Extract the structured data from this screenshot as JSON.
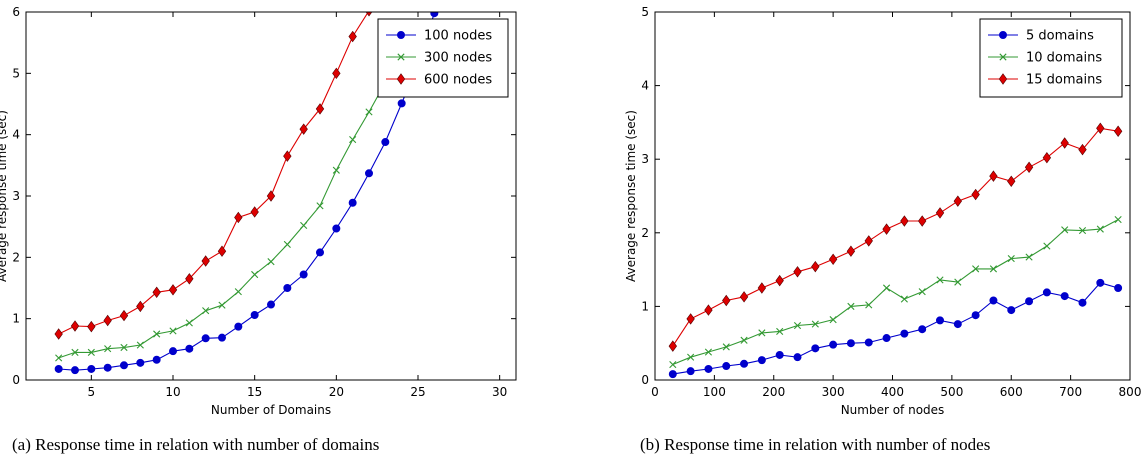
{
  "chart_data": [
    {
      "type": "line",
      "caption": "(a) Response time in relation with number of domains",
      "xlabel": "Number of Domains",
      "ylabel": "Average response time (sec)",
      "xlim": [
        1,
        31
      ],
      "ylim": [
        0,
        6
      ],
      "xticks": [
        5,
        10,
        15,
        20,
        25,
        30
      ],
      "yticks": [
        0,
        1,
        2,
        3,
        4,
        5,
        6
      ],
      "legend_position": "top-right",
      "series": [
        {
          "name": "100 nodes",
          "color": "#0000cc",
          "marker": "circle",
          "x": [
            3,
            4,
            5,
            6,
            7,
            8,
            9,
            10,
            11,
            12,
            13,
            14,
            15,
            16,
            17,
            18,
            19,
            20,
            21,
            22,
            23,
            24,
            25,
            26
          ],
          "y": [
            0.18,
            0.16,
            0.18,
            0.2,
            0.24,
            0.28,
            0.33,
            0.47,
            0.51,
            0.68,
            0.69,
            0.87,
            1.06,
            1.23,
            1.5,
            1.72,
            2.08,
            2.47,
            2.89,
            3.37,
            3.88,
            4.51,
            5.16,
            5.98
          ]
        },
        {
          "name": "300 nodes",
          "color": "#339933",
          "marker": "x",
          "x": [
            3,
            4,
            5,
            6,
            7,
            8,
            9,
            10,
            11,
            12,
            13,
            14,
            15,
            16,
            17,
            18,
            19,
            20,
            21,
            22,
            23
          ],
          "y": [
            0.36,
            0.45,
            0.45,
            0.51,
            0.53,
            0.57,
            0.75,
            0.8,
            0.93,
            1.13,
            1.22,
            1.44,
            1.72,
            1.93,
            2.21,
            2.52,
            2.84,
            3.42,
            3.92,
            4.37,
            4.85
          ]
        },
        {
          "name": "600 nodes",
          "color": "#dd0000",
          "marker": "diamond",
          "x": [
            3,
            4,
            5,
            6,
            7,
            8,
            9,
            10,
            11,
            12,
            13,
            14,
            15,
            16,
            17,
            18,
            19,
            20,
            21,
            22
          ],
          "y": [
            0.75,
            0.88,
            0.87,
            0.97,
            1.05,
            1.2,
            1.43,
            1.47,
            1.65,
            1.94,
            2.1,
            2.65,
            2.74,
            3.0,
            3.65,
            4.09,
            4.42,
            5.0,
            5.6,
            6.02
          ]
        }
      ]
    },
    {
      "type": "line",
      "caption": "(b) Response time in relation with number of nodes",
      "xlabel": "Number of nodes",
      "ylabel": "Average response time (sec)",
      "xlim": [
        0,
        800
      ],
      "ylim": [
        0,
        5
      ],
      "xticks": [
        0,
        100,
        200,
        300,
        400,
        500,
        600,
        700,
        800
      ],
      "yticks": [
        0,
        1,
        2,
        3,
        4,
        5
      ],
      "legend_position": "top-right",
      "series": [
        {
          "name": "5 domains",
          "color": "#0000cc",
          "marker": "circle",
          "x": [
            30,
            60,
            90,
            120,
            150,
            180,
            210,
            240,
            270,
            300,
            330,
            360,
            390,
            420,
            450,
            480,
            510,
            540,
            570,
            600,
            630,
            660,
            690,
            720,
            750,
            780
          ],
          "y": [
            0.08,
            0.12,
            0.15,
            0.19,
            0.22,
            0.27,
            0.34,
            0.31,
            0.43,
            0.48,
            0.5,
            0.51,
            0.57,
            0.63,
            0.69,
            0.81,
            0.76,
            0.88,
            1.08,
            0.95,
            1.07,
            1.19,
            1.14,
            1.05,
            1.32,
            1.25
          ]
        },
        {
          "name": "10 domains",
          "color": "#339933",
          "marker": "x",
          "x": [
            30,
            60,
            90,
            120,
            150,
            180,
            210,
            240,
            270,
            300,
            330,
            360,
            390,
            420,
            450,
            480,
            510,
            540,
            570,
            600,
            630,
            660,
            690,
            720,
            750,
            780
          ],
          "y": [
            0.21,
            0.31,
            0.38,
            0.45,
            0.54,
            0.64,
            0.66,
            0.74,
            0.76,
            0.82,
            1.0,
            1.02,
            1.25,
            1.1,
            1.2,
            1.36,
            1.33,
            1.51,
            1.51,
            1.65,
            1.67,
            1.82,
            2.04,
            2.03,
            2.05,
            2.18
          ]
        },
        {
          "name": "15 domains",
          "color": "#dd0000",
          "marker": "diamond",
          "x": [
            30,
            60,
            90,
            120,
            150,
            180,
            210,
            240,
            270,
            300,
            330,
            360,
            390,
            420,
            450,
            480,
            510,
            540,
            570,
            600,
            630,
            660,
            690,
            720,
            750,
            780
          ],
          "y": [
            0.46,
            0.83,
            0.95,
            1.08,
            1.13,
            1.25,
            1.35,
            1.47,
            1.54,
            1.64,
            1.75,
            1.89,
            2.05,
            2.16,
            2.16,
            2.27,
            2.43,
            2.52,
            2.77,
            2.7,
            2.89,
            3.02,
            3.22,
            3.13,
            3.42,
            3.38
          ]
        }
      ]
    }
  ]
}
